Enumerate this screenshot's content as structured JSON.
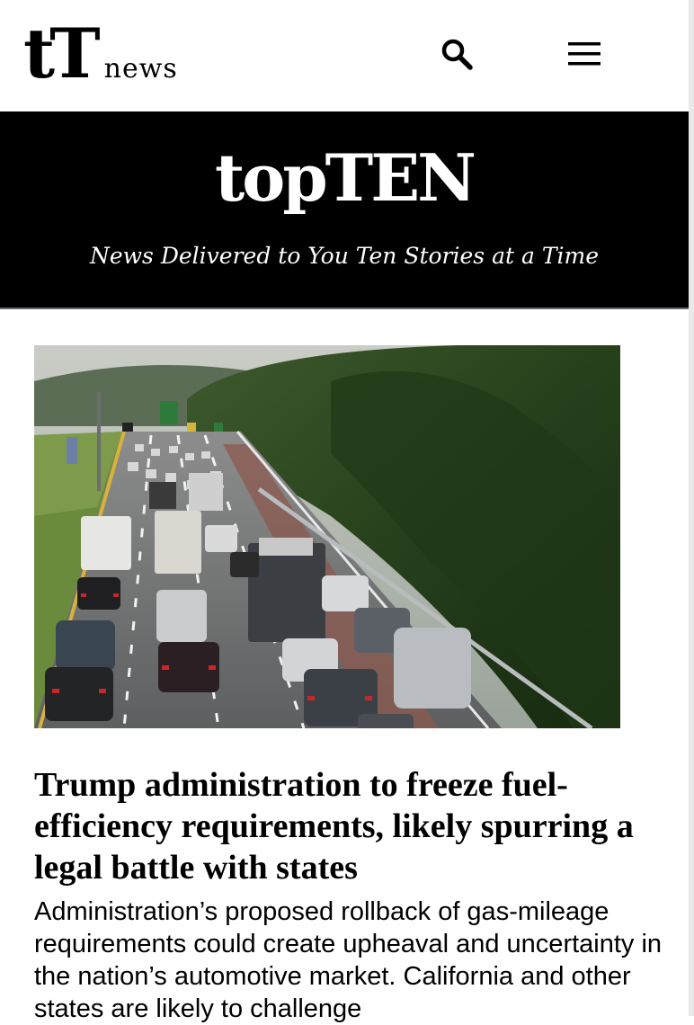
{
  "header": {
    "logo_mark": "tT",
    "logo_word": "news",
    "search_icon": "search-icon",
    "menu_icon": "hamburger-menu-icon"
  },
  "hero": {
    "title": "topTEN",
    "tagline": "News Delivered to You Ten Stories at a Time",
    "background": "#000000"
  },
  "article": {
    "image_icon": "highway-traffic-photo",
    "headline": "Trump administration to freeze fuel-efficiency requirements, likely spurring a legal battle with states",
    "summary": "Administration’s proposed rollback of gas-mileage requirements could create upheaval and uncertainty in the nation’s automotive market. California and other states are likely to challenge"
  }
}
